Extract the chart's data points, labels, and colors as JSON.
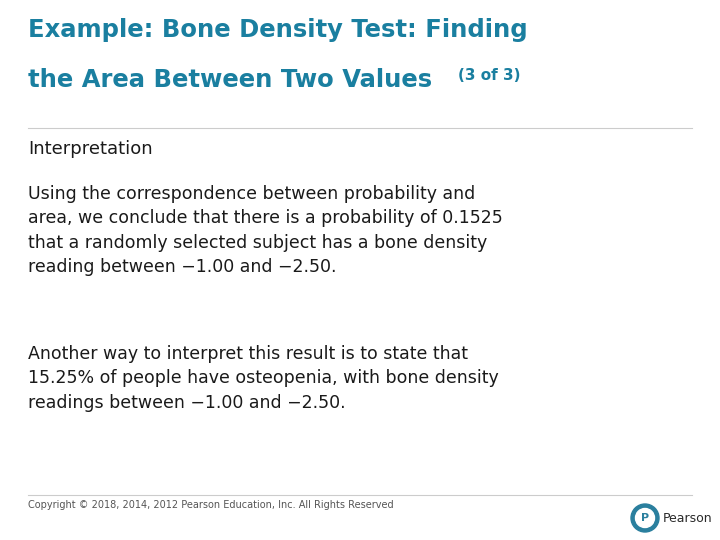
{
  "title_line1": "Example: Bone Density Test: Finding",
  "title_line2": "the Area Between Two Values",
  "title_suffix": "(3 of 3)",
  "title_color": "#1a7fa0",
  "subtitle": "Interpretation",
  "paragraph1": "Using the correspondence between probability and\narea, we conclude that there is a probability of 0.1525\nthat a randomly selected subject has a bone density\nreading between −1.00 and −2.50.",
  "paragraph2": "Another way to interpret this result is to state that\n15.25% of people have osteopenia, with bone density\nreadings between −1.00 and −2.50.",
  "footer": "Copyright © 2018, 2014, 2012 Pearson Education, Inc. All Rights Reserved",
  "background_color": "#ffffff",
  "text_color": "#1a1a1a",
  "footer_color": "#555555",
  "pearson_text": "Pearson",
  "pearson_circle_color": "#2a7f9e",
  "pearson_text_color": "#2a2a2a",
  "title_fontsize": 17.5,
  "suffix_fontsize": 11,
  "subtitle_fontsize": 13,
  "body_fontsize": 12.5,
  "footer_fontsize": 7
}
